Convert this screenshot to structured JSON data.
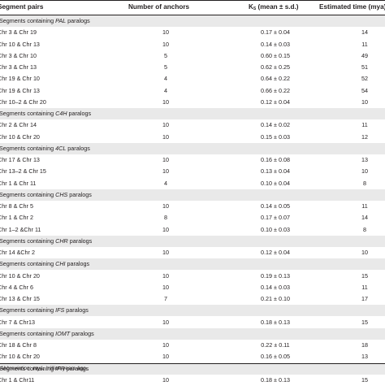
{
  "header": {
    "segment_pairs": "Segment pairs",
    "anchors": "Number of anchors",
    "ks_k": "K",
    "ks_sub": "S",
    "ks_rest": " (mean ± s.d.)",
    "time": "Estimated time (mya)"
  },
  "rows": [
    {
      "type": "group",
      "prefix": "Segments containing ",
      "gene": "PAL",
      "suffix": " paralogs"
    },
    {
      "type": "data",
      "pair": "Chr 3 & Chr 19",
      "anchors": "10",
      "ks": "0.17 ± 0.04",
      "time": "14"
    },
    {
      "type": "data",
      "pair": "Chr 10 & Chr 13",
      "anchors": "10",
      "ks": "0.14 ± 0.03",
      "time": "11"
    },
    {
      "type": "data",
      "pair": "Chr 3 & Chr 10",
      "anchors": "5",
      "ks": "0.60 ± 0.15",
      "time": "49"
    },
    {
      "type": "data",
      "pair": "Chr 3 & Chr 13",
      "anchors": "5",
      "ks": "0.62 ± 0.25",
      "time": "51"
    },
    {
      "type": "data",
      "pair": "Chr 19 & Chr 10",
      "anchors": "4",
      "ks": "0.64 ± 0.22",
      "time": "52"
    },
    {
      "type": "data",
      "pair": "Chr 19 & Chr 13",
      "anchors": "4",
      "ks": "0.66 ± 0.22",
      "time": "54"
    },
    {
      "type": "data",
      "pair": "Chr 10–2 & Chr 20",
      "anchors": "10",
      "ks": "0.12 ± 0.04",
      "time": "10"
    },
    {
      "type": "group",
      "prefix": "Segments containing ",
      "gene": "C4H",
      "suffix": " paralogs"
    },
    {
      "type": "data",
      "pair": "Chr 2 & Chr 14",
      "anchors": "10",
      "ks": "0.14 ± 0.02",
      "time": "11"
    },
    {
      "type": "data",
      "pair": "Chr 10 & Chr 20",
      "anchors": "10",
      "ks": "0.15 ± 0.03",
      "time": "12"
    },
    {
      "type": "group",
      "prefix": "Segments containing ",
      "gene": "4CL",
      "suffix": " paralogs"
    },
    {
      "type": "data",
      "pair": "Chr 17 & Chr 13",
      "anchors": "10",
      "ks": "0.16 ± 0.08",
      "time": "13"
    },
    {
      "type": "data",
      "pair": "Chr 13–2 & Chr 15",
      "anchors": "10",
      "ks": "0.13 ± 0.04",
      "time": "10"
    },
    {
      "type": "data",
      "pair": "Chr 1 & Chr 11",
      "anchors": "4",
      "ks": "0.10 ± 0.04",
      "time": "8"
    },
    {
      "type": "group",
      "prefix": "Segments containing ",
      "gene": "CHS",
      "suffix": " paralogs"
    },
    {
      "type": "data",
      "pair": "Chr 8 & Chr 5",
      "anchors": "10",
      "ks": "0.14 ± 0.05",
      "time": "11"
    },
    {
      "type": "data",
      "pair": "Chr 1 & Chr 2",
      "anchors": "8",
      "ks": "0.17 ± 0.07",
      "time": "14"
    },
    {
      "type": "data",
      "pair": "Chr 1–2 &Chr 11",
      "anchors": "10",
      "ks": "0.10 ± 0.03",
      "time": "8"
    },
    {
      "type": "group",
      "prefix": "Segments containing ",
      "gene": "CHR",
      "suffix": " paralogs"
    },
    {
      "type": "data",
      "pair": "Chr 14 &Chr 2",
      "anchors": "10",
      "ks": "0.12 ± 0.04",
      "time": "10"
    },
    {
      "type": "group",
      "prefix": "Segments containing ",
      "gene": "CHI",
      "suffix": " paralogs"
    },
    {
      "type": "data",
      "pair": "Chr 10 & Chr 20",
      "anchors": "10",
      "ks": "0.19 ± 0.13",
      "time": "15"
    },
    {
      "type": "data",
      "pair": "Chr 4 & Chr 6",
      "anchors": "10",
      "ks": "0.14 ± 0.03",
      "time": "11"
    },
    {
      "type": "data",
      "pair": "Chr 13 & Chr 15",
      "anchors": "7",
      "ks": "0.21 ± 0.10",
      "time": "17"
    },
    {
      "type": "group",
      "prefix": "Segments containing ",
      "gene": "IFS",
      "suffix": " paralogs"
    },
    {
      "type": "data",
      "pair": "Chr 7 & Chr13",
      "anchors": "10",
      "ks": "0.18 ± 0.13",
      "time": "15"
    },
    {
      "type": "group",
      "prefix": "Segments containing ",
      "gene": "IOMT",
      "suffix": " paralogs"
    },
    {
      "type": "data",
      "pair": "Chr 18 & Chr 8",
      "anchors": "10",
      "ks": "0.22 ± 0.11",
      "time": "18"
    },
    {
      "type": "data",
      "pair": "Chr 10 & Chr 20",
      "anchors": "10",
      "ks": "0.16 ± 0.05",
      "time": "13"
    },
    {
      "type": "group",
      "prefix": "Segments containing ",
      "gene": "IFR",
      "suffix": " paralogs"
    },
    {
      "type": "data",
      "pair": "Chr 1 & Chr11",
      "anchors": "10",
      "ks": "0.18 ± 0.13",
      "time": "15"
    }
  ],
  "footnote": {
    "label": "Abbreviation",
    "text": ": mya, million years ago."
  }
}
